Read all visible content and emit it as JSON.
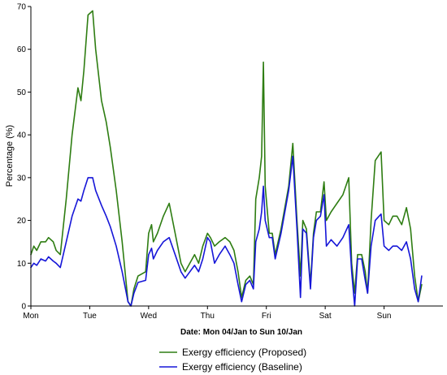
{
  "chart_data": {
    "type": "line",
    "xlabel": "Date: Mon 04/Jan to Sun 10/Jan",
    "ylabel": "Percentage (%)",
    "ylim": [
      0,
      70
    ],
    "xlim": [
      0,
      7
    ],
    "yticks": [
      0,
      10,
      20,
      30,
      40,
      50,
      60,
      70
    ],
    "xticks": [
      {
        "label": "Mon",
        "x": 0
      },
      {
        "label": "Tue",
        "x": 1
      },
      {
        "label": "Wed",
        "x": 2
      },
      {
        "label": "Thu",
        "x": 3
      },
      {
        "label": "Fri",
        "x": 4
      },
      {
        "label": "Sat",
        "x": 5
      },
      {
        "label": "Sun",
        "x": 6
      }
    ],
    "grid": false,
    "legend": "bottom-center",
    "series": [
      {
        "name": "Exergy efficiency (Proposed)",
        "color": "#2e7d12",
        "points": [
          [
            0,
            12
          ],
          [
            0.05,
            14
          ],
          [
            0.1,
            13
          ],
          [
            0.17,
            15
          ],
          [
            0.25,
            15
          ],
          [
            0.3,
            16
          ],
          [
            0.38,
            15
          ],
          [
            0.43,
            13
          ],
          [
            0.5,
            12
          ],
          [
            0.6,
            25
          ],
          [
            0.7,
            40
          ],
          [
            0.8,
            51
          ],
          [
            0.85,
            48
          ],
          [
            0.9,
            55
          ],
          [
            0.97,
            68
          ],
          [
            1.05,
            69
          ],
          [
            1.1,
            60
          ],
          [
            1.2,
            48
          ],
          [
            1.28,
            43
          ],
          [
            1.35,
            37
          ],
          [
            1.45,
            27
          ],
          [
            1.55,
            15
          ],
          [
            1.65,
            1
          ],
          [
            1.7,
            0
          ],
          [
            1.75,
            4
          ],
          [
            1.82,
            7
          ],
          [
            1.95,
            8
          ],
          [
            2.0,
            17
          ],
          [
            2.05,
            19
          ],
          [
            2.08,
            15
          ],
          [
            2.15,
            17
          ],
          [
            2.25,
            21
          ],
          [
            2.35,
            24
          ],
          [
            2.45,
            17
          ],
          [
            2.55,
            10
          ],
          [
            2.62,
            8
          ],
          [
            2.7,
            10
          ],
          [
            2.78,
            12
          ],
          [
            2.85,
            10
          ],
          [
            2.92,
            14
          ],
          [
            3.0,
            17
          ],
          [
            3.05,
            16
          ],
          [
            3.12,
            14
          ],
          [
            3.2,
            15
          ],
          [
            3.3,
            16
          ],
          [
            3.38,
            15
          ],
          [
            3.45,
            13
          ],
          [
            3.52,
            8
          ],
          [
            3.58,
            2
          ],
          [
            3.65,
            6
          ],
          [
            3.72,
            7
          ],
          [
            3.78,
            5
          ],
          [
            3.82,
            25
          ],
          [
            3.88,
            30
          ],
          [
            3.92,
            35
          ],
          [
            3.95,
            57
          ],
          [
            3.98,
            28
          ],
          [
            4.05,
            17
          ],
          [
            4.1,
            17
          ],
          [
            4.15,
            12
          ],
          [
            4.25,
            18
          ],
          [
            4.38,
            28
          ],
          [
            4.45,
            38
          ],
          [
            4.52,
            20
          ],
          [
            4.58,
            7
          ],
          [
            4.62,
            20
          ],
          [
            4.68,
            18
          ],
          [
            4.75,
            5
          ],
          [
            4.8,
            17
          ],
          [
            4.85,
            22
          ],
          [
            4.92,
            22
          ],
          [
            4.98,
            29
          ],
          [
            5.02,
            20
          ],
          [
            5.1,
            22
          ],
          [
            5.2,
            24
          ],
          [
            5.3,
            26
          ],
          [
            5.4,
            30
          ],
          [
            5.45,
            10
          ],
          [
            5.5,
            3
          ],
          [
            5.55,
            12
          ],
          [
            5.62,
            12
          ],
          [
            5.68,
            8
          ],
          [
            5.72,
            3
          ],
          [
            5.78,
            20
          ],
          [
            5.85,
            34
          ],
          [
            5.95,
            36
          ],
          [
            6.0,
            20
          ],
          [
            6.08,
            19
          ],
          [
            6.15,
            21
          ],
          [
            6.22,
            21
          ],
          [
            6.3,
            19
          ],
          [
            6.38,
            23
          ],
          [
            6.45,
            18
          ],
          [
            6.52,
            7
          ],
          [
            6.58,
            1
          ],
          [
            6.64,
            5
          ]
        ]
      },
      {
        "name": "Exergy efficiency (Baseline)",
        "color": "#1616d8",
        "points": [
          [
            0,
            9
          ],
          [
            0.05,
            10
          ],
          [
            0.1,
            9.5
          ],
          [
            0.17,
            11
          ],
          [
            0.25,
            10.5
          ],
          [
            0.3,
            11.5
          ],
          [
            0.38,
            10.5
          ],
          [
            0.43,
            10
          ],
          [
            0.5,
            9
          ],
          [
            0.6,
            15
          ],
          [
            0.7,
            21
          ],
          [
            0.8,
            25
          ],
          [
            0.85,
            24.5
          ],
          [
            0.9,
            27
          ],
          [
            0.97,
            30
          ],
          [
            1.05,
            30
          ],
          [
            1.1,
            27
          ],
          [
            1.2,
            23.5
          ],
          [
            1.28,
            21
          ],
          [
            1.35,
            18.5
          ],
          [
            1.45,
            14
          ],
          [
            1.55,
            8
          ],
          [
            1.65,
            1
          ],
          [
            1.7,
            0
          ],
          [
            1.75,
            3
          ],
          [
            1.82,
            5.5
          ],
          [
            1.95,
            6
          ],
          [
            2.0,
            12
          ],
          [
            2.05,
            13.5
          ],
          [
            2.08,
            11
          ],
          [
            2.15,
            13
          ],
          [
            2.25,
            15
          ],
          [
            2.35,
            16
          ],
          [
            2.45,
            12
          ],
          [
            2.55,
            8
          ],
          [
            2.62,
            6.5
          ],
          [
            2.7,
            8
          ],
          [
            2.78,
            9.5
          ],
          [
            2.85,
            8
          ],
          [
            2.92,
            11
          ],
          [
            3.0,
            16
          ],
          [
            3.05,
            15
          ],
          [
            3.12,
            10
          ],
          [
            3.2,
            12
          ],
          [
            3.3,
            14
          ],
          [
            3.38,
            12
          ],
          [
            3.45,
            10
          ],
          [
            3.52,
            5
          ],
          [
            3.58,
            1
          ],
          [
            3.65,
            5
          ],
          [
            3.72,
            6
          ],
          [
            3.78,
            4
          ],
          [
            3.82,
            15
          ],
          [
            3.88,
            18
          ],
          [
            3.92,
            22
          ],
          [
            3.95,
            28
          ],
          [
            3.98,
            20
          ],
          [
            4.05,
            16
          ],
          [
            4.1,
            16
          ],
          [
            4.15,
            11
          ],
          [
            4.25,
            17
          ],
          [
            4.38,
            27
          ],
          [
            4.45,
            35
          ],
          [
            4.52,
            18
          ],
          [
            4.58,
            2
          ],
          [
            4.62,
            18
          ],
          [
            4.68,
            17
          ],
          [
            4.75,
            4
          ],
          [
            4.8,
            16
          ],
          [
            4.85,
            20
          ],
          [
            4.92,
            21
          ],
          [
            4.98,
            26
          ],
          [
            5.02,
            14
          ],
          [
            5.1,
            15.5
          ],
          [
            5.2,
            14
          ],
          [
            5.3,
            16
          ],
          [
            5.4,
            19
          ],
          [
            5.45,
            8
          ],
          [
            5.5,
            0
          ],
          [
            5.55,
            11
          ],
          [
            5.62,
            11
          ],
          [
            5.68,
            6
          ],
          [
            5.72,
            3
          ],
          [
            5.78,
            14
          ],
          [
            5.85,
            20
          ],
          [
            5.95,
            21.5
          ],
          [
            6.0,
            14
          ],
          [
            6.08,
            13
          ],
          [
            6.15,
            14
          ],
          [
            6.22,
            14
          ],
          [
            6.3,
            13
          ],
          [
            6.38,
            15
          ],
          [
            6.45,
            11
          ],
          [
            6.52,
            4
          ],
          [
            6.58,
            1
          ],
          [
            6.64,
            7
          ]
        ]
      }
    ]
  }
}
